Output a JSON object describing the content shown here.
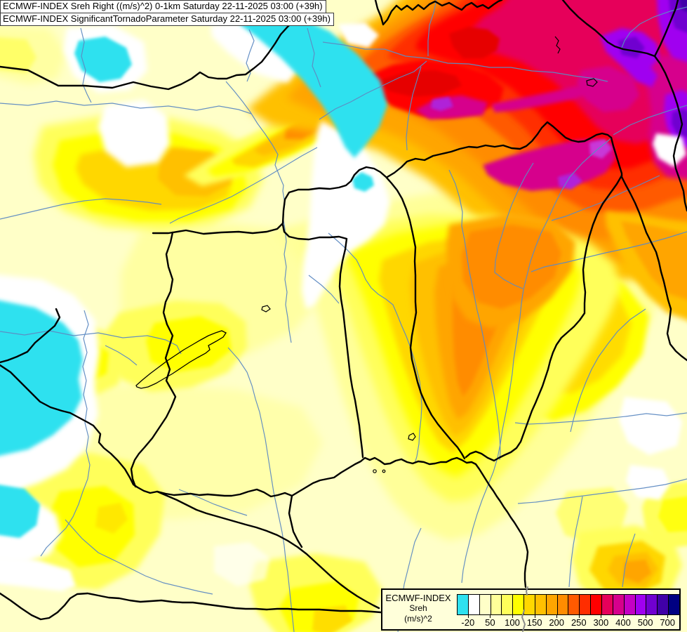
{
  "header": {
    "title_line1": "ECMWF-INDEX Sreh Right ((m/s)^2) 0-1km Saturday 22-11-2025 03:00 (+39h)",
    "title_line2": "ECMWF-INDEX SignificantTornadoParameter Saturday 22-11-2025 03:00 (+39h)"
  },
  "legend": {
    "model_label": "ECMWF-INDEX",
    "parameter_label": "Sreh",
    "units_label": "(m/s)^2",
    "tick_labels": [
      "-20",
      "50",
      "100",
      "150",
      "200",
      "250",
      "300",
      "400",
      "500",
      "700"
    ],
    "palette": [
      "#2FE1EF",
      "#FFFFFF",
      "#FFFFC8",
      "#FFFF99",
      "#FFFF5A",
      "#FFFF00",
      "#FFD700",
      "#FFC000",
      "#FFA500",
      "#FF8C00",
      "#FF5A00",
      "#FF2D00",
      "#FF0000",
      "#E6005A",
      "#D6008C",
      "#C400C4",
      "#A000F0",
      "#7000D0",
      "#4000A8",
      "#000082"
    ]
  },
  "map": {
    "base_color": "#FFFFC8",
    "border_color": "#000000",
    "river_color": "#5E8BC2",
    "outside_boundary_color": "#8A8A8A"
  }
}
